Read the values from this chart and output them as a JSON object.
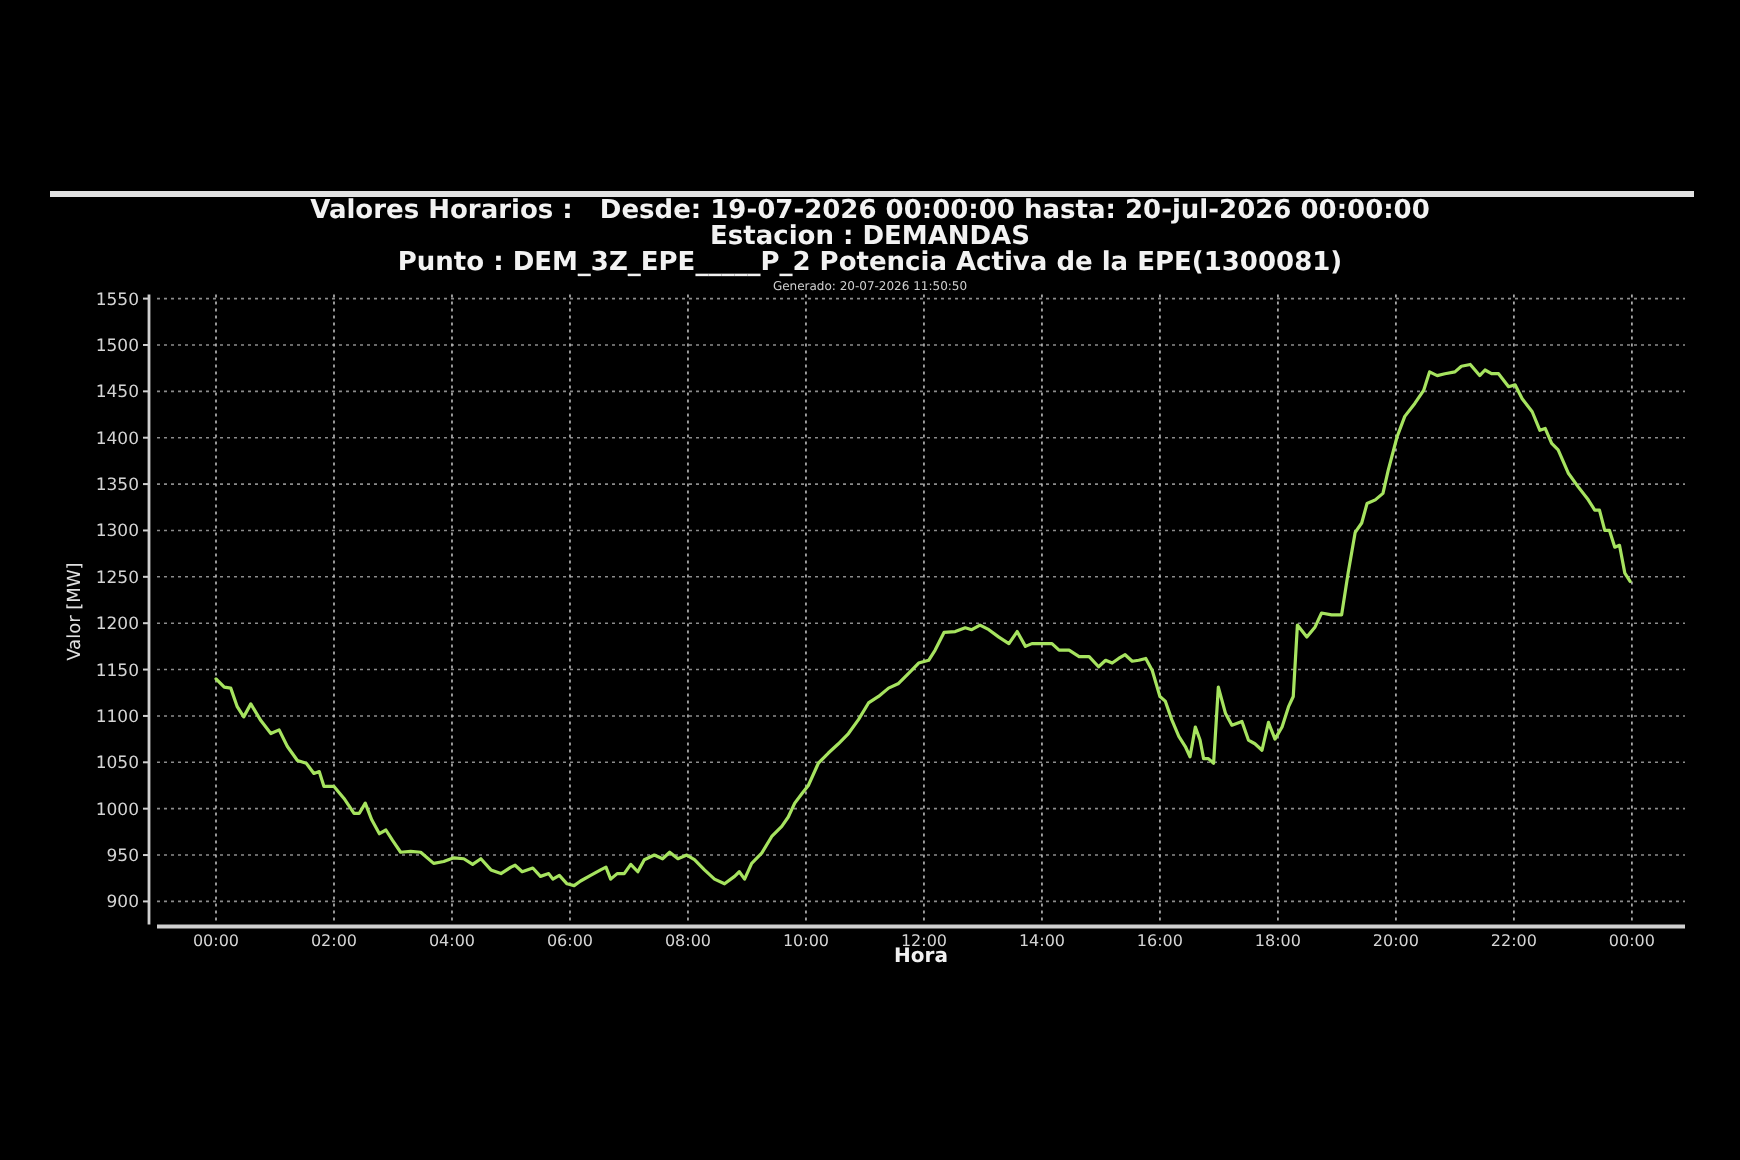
{
  "chart_data": {
    "type": "line",
    "title": "Valores Horarios :   Desde: 19-07-2026 00:00:00 hasta: 20-jul-2026 00:00:00\nEstacion : DEMANDAS\nPunto : DEM_3Z_EPE_____P_2 Potencia Activa de la EPE(1300081)",
    "subtitle": "Generado: 20-07-2026 11:50:50",
    "xlabel": "Hora",
    "ylabel": "Valor [MW]",
    "xlim": [
      -1,
      24.9
    ],
    "xticks": [
      {
        "value": 0,
        "label": "00:00"
      },
      {
        "value": 2,
        "label": "02:00"
      },
      {
        "value": 4,
        "label": "04:00"
      },
      {
        "value": 6,
        "label": "06:00"
      },
      {
        "value": 8,
        "label": "08:00"
      },
      {
        "value": 10,
        "label": "10:00"
      },
      {
        "value": 12,
        "label": "12:00"
      },
      {
        "value": 14,
        "label": "14:00"
      },
      {
        "value": 16,
        "label": "16:00"
      },
      {
        "value": 18,
        "label": "18:00"
      },
      {
        "value": 20,
        "label": "20:00"
      },
      {
        "value": 22,
        "label": "22:00"
      },
      {
        "value": 24,
        "label": "00:00"
      }
    ],
    "ylim": [
      875,
      1550
    ],
    "yticks": [
      900,
      950,
      1000,
      1050,
      1100,
      1150,
      1200,
      1250,
      1300,
      1350,
      1400,
      1450,
      1500,
      1550
    ],
    "grid": true,
    "series": [
      {
        "color": "#a6e35f",
        "x": [
          0,
          0.14,
          0.25,
          0.36,
          0.47,
          0.59,
          0.76,
          0.93,
          1.07,
          1.21,
          1.38,
          1.53,
          1.66,
          1.75,
          1.83,
          2.0,
          2.17,
          2.34,
          2.43,
          2.53,
          2.64,
          2.77,
          2.88,
          2.99,
          3.13,
          3.3,
          3.47,
          3.69,
          3.86,
          4.03,
          4.2,
          4.35,
          4.49,
          4.66,
          4.83,
          5.0,
          5.07,
          5.19,
          5.37,
          5.5,
          5.64,
          5.71,
          5.82,
          5.95,
          6.07,
          6.18,
          6.35,
          6.52,
          6.61,
          6.69,
          6.8,
          6.92,
          7.03,
          7.15,
          7.26,
          7.43,
          7.57,
          7.69,
          7.83,
          7.98,
          8.11,
          8.28,
          8.45,
          8.62,
          8.79,
          8.87,
          8.96,
          9.08,
          9.25,
          9.42,
          9.59,
          9.7,
          9.81,
          9.93,
          10.04,
          10.21,
          10.38,
          10.55,
          10.72,
          10.89,
          11.06,
          11.23,
          11.4,
          11.57,
          11.74,
          11.91,
          12.08,
          12.19,
          12.34,
          12.53,
          12.7,
          12.81,
          12.95,
          13.1,
          13.27,
          13.44,
          13.58,
          13.72,
          13.83,
          14.0,
          14.17,
          14.29,
          14.46,
          14.63,
          14.8,
          14.96,
          15.08,
          15.19,
          15.3,
          15.41,
          15.53,
          15.64,
          15.76,
          15.87,
          16.0,
          16.09,
          16.2,
          16.32,
          16.43,
          16.51,
          16.6,
          16.68,
          16.74,
          16.82,
          16.91,
          16.99,
          17.11,
          17.22,
          17.39,
          17.5,
          17.61,
          17.73,
          17.84,
          17.95,
          18.07,
          18.18,
          18.26,
          18.33,
          18.49,
          18.63,
          18.74,
          18.91,
          19.08,
          19.19,
          19.31,
          19.42,
          19.51,
          19.65,
          19.78,
          19.87,
          20.02,
          20.15,
          20.32,
          20.47,
          20.57,
          20.7,
          20.83,
          21.0,
          21.11,
          21.26,
          21.42,
          21.51,
          21.62,
          21.74,
          21.91,
          22.02,
          22.14,
          22.31,
          22.44,
          22.53,
          22.64,
          22.75,
          22.92,
          23.09,
          23.26,
          23.37,
          23.45,
          23.54,
          23.62,
          23.71,
          23.79,
          23.88,
          23.97
        ],
        "values": [
          1140,
          1131,
          1130,
          1110,
          1099,
          1113,
          1095,
          1081,
          1085,
          1067,
          1052,
          1049,
          1038,
          1040,
          1024,
          1024,
          1011,
          995,
          995,
          1006,
          988,
          973,
          977,
          966,
          953,
          954,
          953,
          941,
          943,
          947,
          946,
          940,
          946,
          934,
          930,
          937,
          939,
          932,
          936,
          927,
          930,
          924,
          928,
          919,
          917,
          922,
          928,
          934,
          937,
          924,
          930,
          930,
          940,
          932,
          945,
          950,
          946,
          953,
          946,
          950,
          945,
          934,
          924,
          919,
          927,
          932,
          924,
          941,
          952,
          970,
          981,
          991,
          1006,
          1016,
          1025,
          1049,
          1060,
          1070,
          1081,
          1096,
          1114,
          1121,
          1130,
          1135,
          1146,
          1157,
          1160,
          1171,
          1190,
          1191,
          1195,
          1193,
          1198,
          1193,
          1185,
          1178,
          1191,
          1175,
          1178,
          1178,
          1178,
          1171,
          1171,
          1164,
          1164,
          1153,
          1160,
          1157,
          1162,
          1166,
          1159,
          1160,
          1162,
          1149,
          1121,
          1116,
          1096,
          1078,
          1067,
          1056,
          1088,
          1074,
          1054,
          1054,
          1049,
          1131,
          1103,
          1090,
          1094,
          1074,
          1070,
          1063,
          1093,
          1075,
          1088,
          1110,
          1121,
          1198,
          1185,
          1196,
          1211,
          1209,
          1209,
          1254,
          1298,
          1308,
          1329,
          1333,
          1340,
          1365,
          1401,
          1423,
          1437,
          1451,
          1471,
          1467,
          1469,
          1471,
          1477,
          1479,
          1467,
          1473,
          1469,
          1469,
          1455,
          1457,
          1442,
          1428,
          1408,
          1410,
          1394,
          1387,
          1362,
          1347,
          1333,
          1322,
          1322,
          1300,
          1300,
          1282,
          1284,
          1254,
          1245
        ]
      }
    ]
  }
}
